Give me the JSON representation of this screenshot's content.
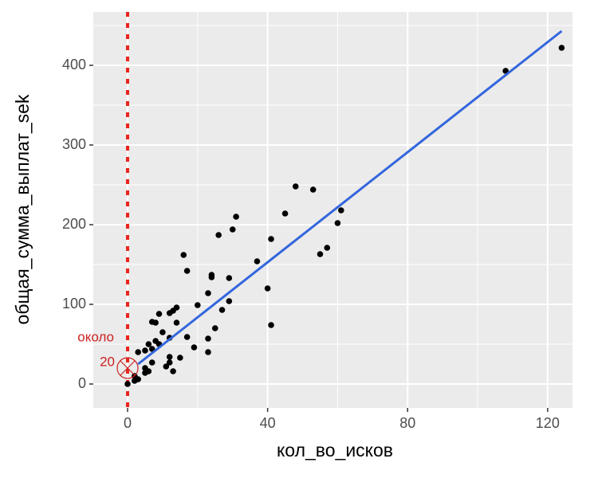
{
  "chart_data": {
    "type": "scatter",
    "x_label": "кол_во_исков",
    "y_label": "общая_сумма_выплат_sek",
    "xlim": [
      -9.8,
      127.1
    ],
    "ylim": [
      -30,
      467
    ],
    "xticks": [
      0,
      40,
      80,
      120
    ],
    "yticks": [
      0,
      100,
      200,
      300,
      400
    ],
    "xminor": [
      20,
      60,
      100
    ],
    "yminor": [
      50,
      150,
      250,
      350,
      450
    ],
    "grid": true,
    "point_color": "#000000",
    "series": [
      {
        "name": "points",
        "color": "#000000",
        "x": [
          0,
          108,
          124,
          48,
          53,
          45,
          31,
          30,
          26,
          61,
          60,
          41,
          37,
          57,
          55,
          16,
          17,
          24,
          24,
          29,
          40,
          23,
          20,
          29,
          27,
          41,
          14,
          13,
          9,
          12,
          7,
          8,
          14,
          25,
          10,
          17,
          12,
          23,
          8,
          6,
          9,
          7,
          19,
          23,
          3,
          5,
          12,
          15,
          7,
          11,
          12,
          5,
          6,
          5,
          13,
          2,
          3,
          2
        ],
        "values": [
          0,
          393,
          422,
          248,
          244,
          214,
          210,
          194,
          187,
          218,
          202,
          182,
          154,
          171,
          163,
          162,
          142,
          137,
          134,
          133,
          120,
          114,
          99,
          104,
          93,
          74,
          96,
          92,
          88,
          89,
          78,
          77,
          77,
          70,
          65,
          59,
          58,
          57,
          54,
          50,
          50,
          44,
          46,
          40,
          40,
          42,
          34,
          33,
          27,
          22,
          27,
          20,
          16,
          14,
          16,
          10,
          6,
          4
        ]
      },
      {
        "name": "fit",
        "color": "#3366dd",
        "x": [
          3,
          124
        ],
        "values": [
          25,
          443
        ]
      }
    ],
    "vline": {
      "x": 0,
      "color": "#e8251d"
    },
    "annotation": {
      "lines": [
        "около",
        "20"
      ],
      "x": 0,
      "y": 20,
      "color": "#cc2222"
    }
  }
}
